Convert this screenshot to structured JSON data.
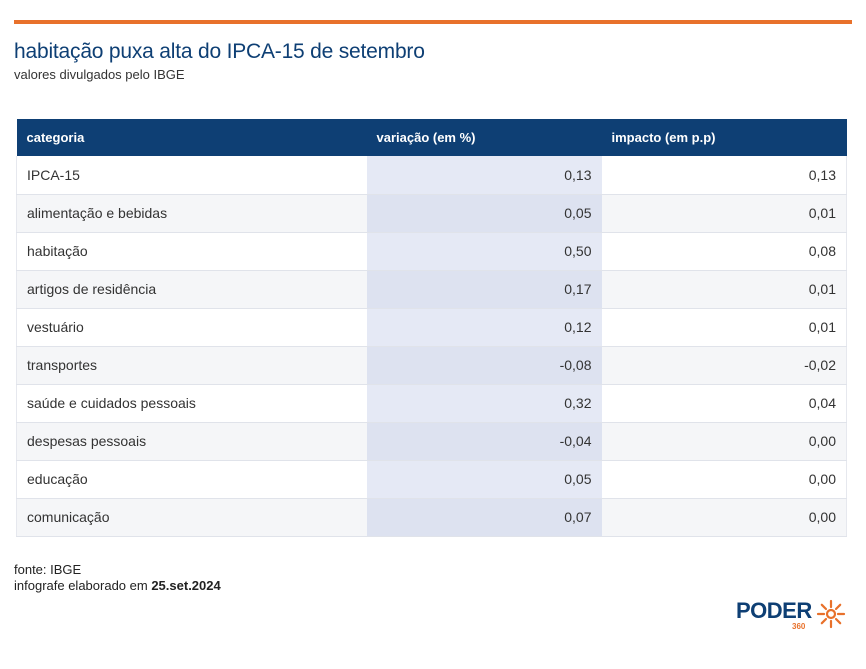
{
  "header": {
    "title": "habitação puxa alta do IPCA-15 de setembro",
    "subtitle": "valores divulgados pelo IBGE"
  },
  "colors": {
    "accent": "#e8712b",
    "brand": "#0e3f74",
    "highlight_column": "#e5e9f5"
  },
  "chart_data": {
    "type": "table",
    "columns": [
      "categoria",
      "variação (em %)",
      "impacto (em p.p)"
    ],
    "rows": [
      [
        "IPCA-15",
        "0,13",
        "0,13"
      ],
      [
        "alimentação e bebidas",
        "0,05",
        "0,01"
      ],
      [
        "habitação",
        "0,50",
        "0,08"
      ],
      [
        "artigos de residência",
        "0,17",
        "0,01"
      ],
      [
        "vestuário",
        "0,12",
        "0,01"
      ],
      [
        "transportes",
        "-0,08",
        "-0,02"
      ],
      [
        "saúde e cuidados pessoais",
        "0,32",
        "0,04"
      ],
      [
        "despesas pessoais",
        "-0,04",
        "0,00"
      ],
      [
        "educação",
        "0,05",
        "0,00"
      ],
      [
        "comunicação",
        "0,07",
        "0,00"
      ]
    ]
  },
  "footer": {
    "source": "fonte: IBGE",
    "created_prefix": "infografe elaborado em",
    "created_date": "25.set.2024"
  },
  "logo": {
    "text": "PODER",
    "number": "360",
    "icon": "sun-burst-icon"
  }
}
